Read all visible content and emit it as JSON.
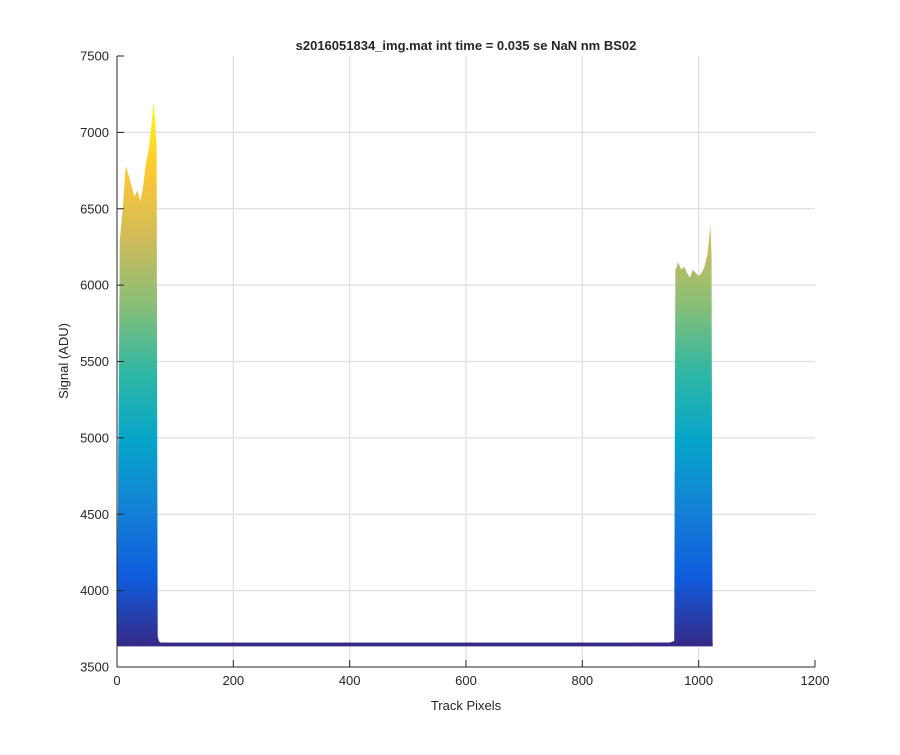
{
  "chart_data": {
    "type": "area",
    "title": "s2016051834_img.mat int time = 0.035 se  NaN nm BS02",
    "xlabel": "Track Pixels",
    "ylabel": "Signal (ADU)",
    "xlim": [
      0,
      1200
    ],
    "ylim": [
      3500,
      7500
    ],
    "xticks": [
      0,
      200,
      400,
      600,
      800,
      1000,
      1200
    ],
    "yticks": [
      3500,
      4000,
      4500,
      5000,
      5500,
      6000,
      6500,
      7000,
      7500
    ],
    "x_tick_labels": [
      "0",
      "200",
      "400",
      "600",
      "800",
      "1000",
      "1200"
    ],
    "y_tick_labels": [
      "3500",
      "4000",
      "4500",
      "5000",
      "5500",
      "6000",
      "6500",
      "7000",
      "7500"
    ],
    "grid": true,
    "colormap": "parula",
    "baseline": 3640,
    "background_level": 3650,
    "envelope_x": [
      0,
      2,
      5,
      10,
      15,
      20,
      25,
      30,
      35,
      40,
      45,
      50,
      55,
      60,
      63,
      66,
      68,
      70,
      72,
      75,
      80,
      200,
      400,
      600,
      800,
      950,
      958,
      960,
      965,
      970,
      975,
      980,
      985,
      990,
      995,
      1000,
      1005,
      1010,
      1015,
      1018,
      1020,
      1022,
      1024,
      1030
    ],
    "envelope_y": [
      3700,
      4800,
      6300,
      6500,
      6780,
      6720,
      6650,
      6580,
      6620,
      6550,
      6650,
      6800,
      6900,
      7080,
      7200,
      7050,
      6900,
      3700,
      3670,
      3660,
      3655,
      3650,
      3650,
      3652,
      3655,
      3660,
      3670,
      6100,
      6150,
      6100,
      6120,
      6080,
      6050,
      6100,
      6080,
      6060,
      6080,
      6120,
      6200,
      6300,
      6400,
      6200,
      3640,
      3640
    ]
  },
  "colors": {
    "colormap_stops": [
      "#352a87",
      "#0f5cdd",
      "#1481d6",
      "#06a4ca",
      "#2eb7a4",
      "#87bf77",
      "#d1bb59",
      "#fec832",
      "#f9fb0e"
    ],
    "axis": "#262626",
    "grid": "#dfdfdf",
    "background": "#ffffff"
  }
}
